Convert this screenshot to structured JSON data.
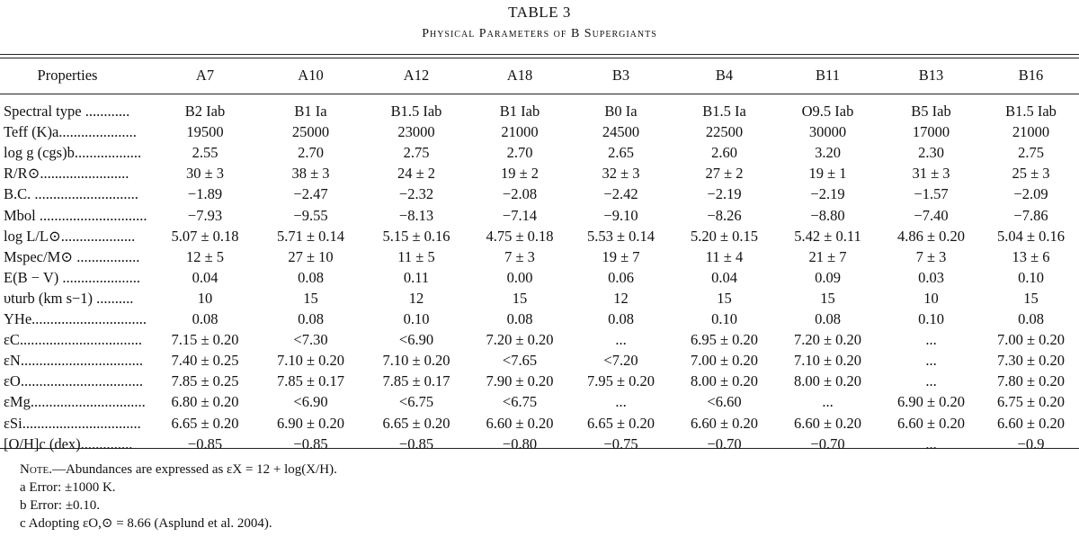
{
  "table": {
    "number": "TABLE 3",
    "caption": "Physical Parameters of B Supergiants",
    "columns": [
      "Properties",
      "A7",
      "A10",
      "A12",
      "A18",
      "B3",
      "B4",
      "B11",
      "B13",
      "B16"
    ],
    "rows": [
      {
        "label": "Spectral type ............",
        "values": [
          "B2 Iab",
          "B1 Ia",
          "B1.5 Iab",
          "B1 Iab",
          "B0 Ia",
          "B1.5 Ia",
          "O9.5 Iab",
          "B5 Iab",
          "B1.5 Iab"
        ]
      },
      {
        "label": "Teff (K)a.....................",
        "values": [
          "19500",
          "25000",
          "23000",
          "21000",
          "24500",
          "22500",
          "30000",
          "17000",
          "21000"
        ]
      },
      {
        "label": "log g (cgs)b..................",
        "values": [
          "2.55",
          "2.70",
          "2.75",
          "2.70",
          "2.65",
          "2.60",
          "3.20",
          "2.30",
          "2.75"
        ]
      },
      {
        "label": "R/R⊙........................",
        "values": [
          "30 ± 3",
          "38 ± 3",
          "24 ± 2",
          "19 ± 2",
          "32 ± 3",
          "27 ± 2",
          "19 ± 1",
          "31 ± 3",
          "25 ± 3"
        ]
      },
      {
        "label": "B.C. ............................",
        "values": [
          "−1.89",
          "−2.47",
          "−2.32",
          "−2.08",
          "−2.42",
          "−2.19",
          "−2.19",
          "−1.57",
          "−2.09"
        ]
      },
      {
        "label": "Mbol .............................",
        "values": [
          "−7.93",
          "−9.55",
          "−8.13",
          "−7.14",
          "−9.10",
          "−8.26",
          "−8.80",
          "−7.40",
          "−7.86"
        ]
      },
      {
        "label": "log L/L⊙....................",
        "values": [
          "5.07 ± 0.18",
          "5.71 ± 0.14",
          "5.15 ± 0.16",
          "4.75 ± 0.18",
          "5.53 ± 0.14",
          "5.20 ± 0.15",
          "5.42 ± 0.11",
          "4.86 ± 0.20",
          "5.04 ± 0.16"
        ]
      },
      {
        "label": "Mspec/M⊙ .................",
        "values": [
          "12 ± 5",
          "27 ± 10",
          "11 ± 5",
          "7 ± 3",
          "19 ± 7",
          "11 ± 4",
          "21 ± 7",
          "7 ± 3",
          "13 ± 6"
        ]
      },
      {
        "label": "E(B − V) .....................",
        "values": [
          "0.04",
          "0.08",
          "0.11",
          "0.00",
          "0.06",
          "0.04",
          "0.09",
          "0.03",
          "0.10"
        ]
      },
      {
        "label": "υturb (km s−1) ..........",
        "values": [
          "10",
          "15",
          "12",
          "15",
          "12",
          "15",
          "15",
          "10",
          "15"
        ]
      },
      {
        "label": "YHe...............................",
        "values": [
          "0.08",
          "0.08",
          "0.10",
          "0.08",
          "0.08",
          "0.10",
          "0.08",
          "0.10",
          "0.08"
        ]
      },
      {
        "label": "εC.................................",
        "values": [
          "7.15 ± 0.20",
          "<7.30",
          "<6.90",
          "7.20 ± 0.20",
          "...",
          "6.95 ± 0.20",
          "7.20 ± 0.20",
          "...",
          "7.00 ± 0.20"
        ]
      },
      {
        "label": "εN.................................",
        "values": [
          "7.40 ± 0.25",
          "7.10 ± 0.20",
          "7.10 ± 0.20",
          "<7.65",
          "<7.20",
          "7.00 ± 0.20",
          "7.10 ± 0.20",
          "...",
          "7.30 ± 0.20"
        ]
      },
      {
        "label": "εO.................................",
        "values": [
          "7.85 ± 0.25",
          "7.85 ± 0.17",
          "7.85 ± 0.17",
          "7.90 ± 0.20",
          "7.95 ± 0.20",
          "8.00 ± 0.20",
          "8.00 ± 0.20",
          "...",
          "7.80 ± 0.20"
        ]
      },
      {
        "label": "εMg...............................",
        "values": [
          "6.80 ± 0.20",
          "<6.90",
          "<6.75",
          "<6.75",
          "...",
          "<6.60",
          "...",
          "6.90 ± 0.20",
          "6.75 ± 0.20"
        ]
      },
      {
        "label": "εSi................................",
        "values": [
          "6.65 ± 0.20",
          "6.90 ± 0.20",
          "6.65 ± 0.20",
          "6.60 ± 0.20",
          "6.65 ± 0.20",
          "6.60 ± 0.20",
          "6.60 ± 0.20",
          "6.60 ± 0.20",
          "6.60 ± 0.20"
        ]
      },
      {
        "label": "[O/H]c (dex)..............",
        "values": [
          "−0.85",
          "−0.85",
          "−0.85",
          "−0.80",
          "−0.75",
          "−0.70",
          "−0.70",
          "...",
          "−0.9"
        ]
      }
    ]
  },
  "notes": {
    "note_lead": "Note.",
    "note_text": "—Abundances are expressed as εX = 12 + log(X/H).",
    "a": "a  Error: ±1000 K.",
    "b": "b  Error: ±0.10.",
    "c": "c  Adopting εO,⊙ = 8.66 (Asplund et al. 2004)."
  }
}
